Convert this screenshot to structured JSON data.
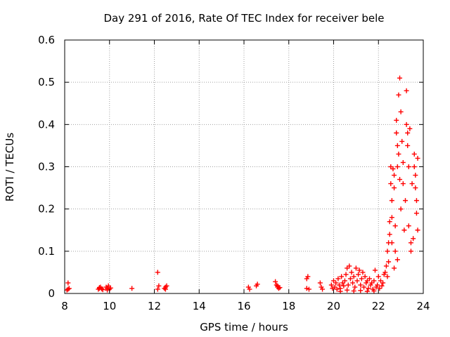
{
  "chart_data": {
    "type": "scatter",
    "title": "Day 291 of 2016, Rate Of TEC Index for receiver bele",
    "xlabel": "GPS time / hours",
    "ylabel": "ROTI / TECUs",
    "xlim": [
      8,
      24
    ],
    "ylim": [
      0,
      0.6
    ],
    "x_ticks": [
      "8",
      "10",
      "12",
      "14",
      "16",
      "18",
      "20",
      "22",
      "24"
    ],
    "y_ticks": [
      "0",
      "0.1",
      "0.2",
      "0.3",
      "0.4",
      "0.5",
      "0.6"
    ],
    "grid": true,
    "marker": "plus",
    "colors": {
      "series": "#ff0000",
      "grid": "#a0a0a0",
      "axis": "#000000"
    },
    "series": [
      {
        "name": "ROTI",
        "points": [
          [
            8.15,
            0.025
          ],
          [
            8.15,
            0.01
          ],
          [
            8.2,
            0.012
          ],
          [
            8.1,
            0.008
          ],
          [
            9.5,
            0.01
          ],
          [
            9.55,
            0.012
          ],
          [
            9.6,
            0.015
          ],
          [
            9.65,
            0.011
          ],
          [
            9.7,
            0.009
          ],
          [
            9.55,
            0.014
          ],
          [
            9.85,
            0.015
          ],
          [
            9.9,
            0.012
          ],
          [
            9.95,
            0.018
          ],
          [
            10.0,
            0.01
          ],
          [
            10.05,
            0.013
          ],
          [
            9.9,
            0.008
          ],
          [
            11.0,
            0.012
          ],
          [
            12.15,
            0.05
          ],
          [
            12.2,
            0.018
          ],
          [
            12.15,
            0.01
          ],
          [
            12.45,
            0.012
          ],
          [
            12.5,
            0.015
          ],
          [
            12.55,
            0.018
          ],
          [
            12.5,
            0.01
          ],
          [
            16.2,
            0.015
          ],
          [
            16.25,
            0.01
          ],
          [
            16.55,
            0.018
          ],
          [
            16.6,
            0.022
          ],
          [
            17.4,
            0.028
          ],
          [
            17.45,
            0.02
          ],
          [
            17.5,
            0.015
          ],
          [
            17.55,
            0.012
          ],
          [
            17.5,
            0.018
          ],
          [
            17.6,
            0.014
          ],
          [
            18.8,
            0.035
          ],
          [
            18.85,
            0.04
          ],
          [
            18.8,
            0.012
          ],
          [
            18.9,
            0.01
          ],
          [
            19.4,
            0.025
          ],
          [
            19.45,
            0.015
          ],
          [
            19.5,
            0.01
          ],
          [
            19.9,
            0.02
          ],
          [
            19.95,
            0.012
          ],
          [
            20.0,
            0.03
          ],
          [
            20.05,
            0.015
          ],
          [
            20.1,
            0.025
          ],
          [
            20.15,
            0.01
          ],
          [
            20.2,
            0.035
          ],
          [
            20.25,
            0.02
          ],
          [
            20.3,
            0.012
          ],
          [
            20.35,
            0.04
          ],
          [
            20.4,
            0.025
          ],
          [
            20.45,
            0.018
          ],
          [
            20.5,
            0.03
          ],
          [
            20.55,
            0.045
          ],
          [
            20.6,
            0.06
          ],
          [
            20.65,
            0.02
          ],
          [
            20.7,
            0.065
          ],
          [
            20.75,
            0.035
          ],
          [
            20.8,
            0.05
          ],
          [
            20.85,
            0.025
          ],
          [
            20.9,
            0.04
          ],
          [
            20.95,
            0.015
          ],
          [
            21.0,
            0.06
          ],
          [
            21.05,
            0.03
          ],
          [
            21.1,
            0.045
          ],
          [
            21.15,
            0.055
          ],
          [
            21.2,
            0.02
          ],
          [
            21.25,
            0.035
          ],
          [
            21.3,
            0.05
          ],
          [
            21.35,
            0.015
          ],
          [
            21.4,
            0.04
          ],
          [
            21.45,
            0.025
          ],
          [
            21.5,
            0.03
          ],
          [
            21.55,
            0.012
          ],
          [
            21.6,
            0.035
          ],
          [
            21.65,
            0.02
          ],
          [
            21.7,
            0.025
          ],
          [
            21.75,
            0.01
          ],
          [
            21.8,
            0.03
          ],
          [
            21.85,
            0.055
          ],
          [
            21.9,
            0.015
          ],
          [
            21.95,
            0.02
          ],
          [
            22.0,
            0.04
          ],
          [
            22.05,
            0.012
          ],
          [
            22.1,
            0.03
          ],
          [
            22.15,
            0.018
          ],
          [
            22.2,
            0.025
          ],
          [
            22.25,
            0.045
          ],
          [
            20.3,
            0.005
          ],
          [
            20.6,
            0.008
          ],
          [
            20.9,
            0.006
          ],
          [
            21.2,
            0.007
          ],
          [
            21.5,
            0.005
          ],
          [
            21.8,
            0.006
          ],
          [
            22.3,
            0.05
          ],
          [
            22.35,
            0.065
          ],
          [
            22.4,
            0.04
          ],
          [
            22.45,
            0.075
          ],
          [
            22.4,
            0.1
          ],
          [
            22.45,
            0.12
          ],
          [
            22.5,
            0.17
          ],
          [
            22.5,
            0.14
          ],
          [
            22.55,
            0.26
          ],
          [
            22.55,
            0.3
          ],
          [
            22.6,
            0.22
          ],
          [
            22.6,
            0.18
          ],
          [
            22.65,
            0.295
          ],
          [
            22.7,
            0.28
          ],
          [
            22.7,
            0.25
          ],
          [
            22.75,
            0.16
          ],
          [
            22.75,
            0.1
          ],
          [
            22.8,
            0.41
          ],
          [
            22.8,
            0.38
          ],
          [
            22.85,
            0.35
          ],
          [
            22.85,
            0.3
          ],
          [
            22.9,
            0.47
          ],
          [
            22.9,
            0.33
          ],
          [
            22.95,
            0.51
          ],
          [
            22.95,
            0.27
          ],
          [
            23.0,
            0.43
          ],
          [
            23.0,
            0.2
          ],
          [
            23.05,
            0.36
          ],
          [
            23.1,
            0.31
          ],
          [
            23.1,
            0.26
          ],
          [
            23.15,
            0.15
          ],
          [
            23.2,
            0.22
          ],
          [
            23.25,
            0.48
          ],
          [
            23.25,
            0.4
          ],
          [
            23.3,
            0.38
          ],
          [
            23.3,
            0.35
          ],
          [
            23.35,
            0.3
          ],
          [
            23.35,
            0.16
          ],
          [
            23.4,
            0.39
          ],
          [
            23.45,
            0.12
          ],
          [
            23.45,
            0.1
          ],
          [
            23.5,
            0.26
          ],
          [
            23.55,
            0.13
          ],
          [
            23.6,
            0.33
          ],
          [
            23.6,
            0.3
          ],
          [
            23.65,
            0.28
          ],
          [
            23.65,
            0.25
          ],
          [
            23.7,
            0.22
          ],
          [
            23.7,
            0.19
          ],
          [
            23.75,
            0.15
          ],
          [
            23.75,
            0.32
          ],
          [
            22.6,
            0.12
          ],
          [
            22.7,
            0.06
          ],
          [
            22.85,
            0.08
          ]
        ]
      }
    ]
  }
}
